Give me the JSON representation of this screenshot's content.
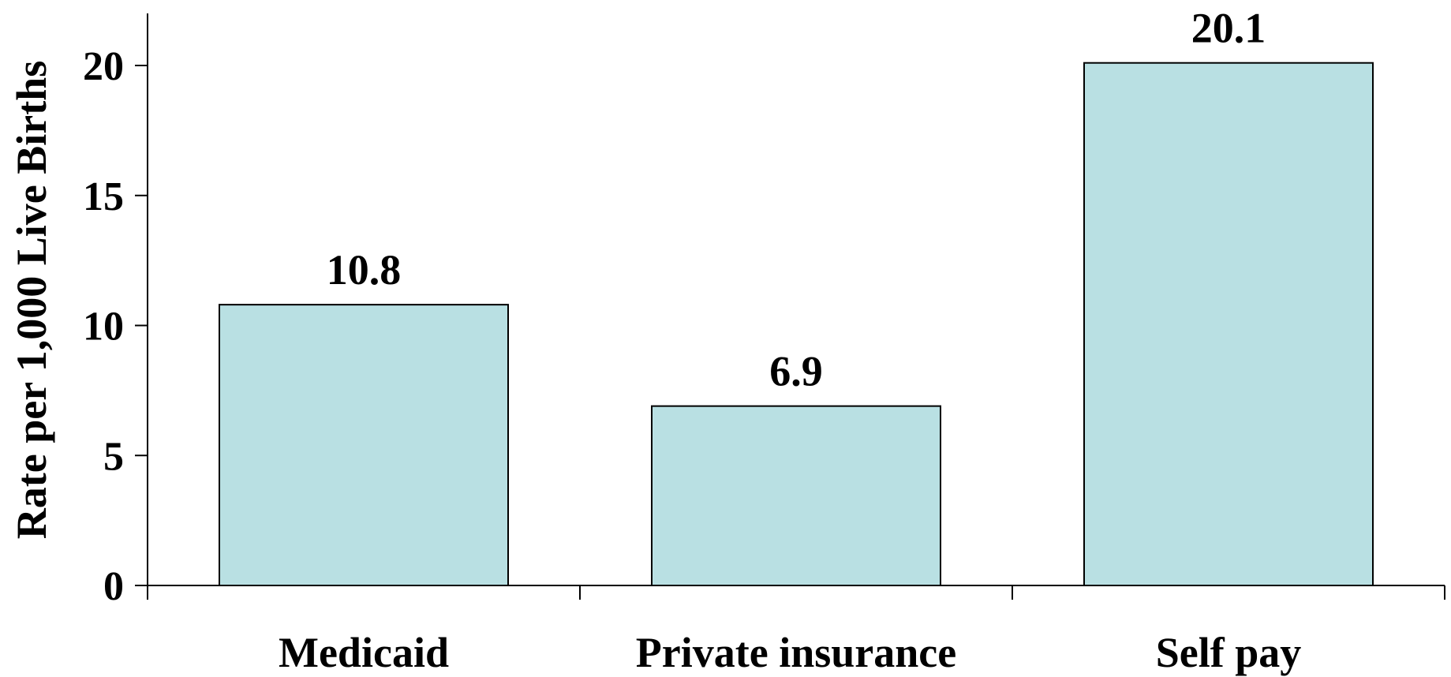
{
  "chart_data": {
    "type": "bar",
    "title": "",
    "xlabel": "",
    "ylabel": "Rate per 1,000 Live Births",
    "categories": [
      "Medicaid",
      "Private insurance",
      "Self pay"
    ],
    "values": [
      10.8,
      6.9,
      20.1
    ],
    "data_labels": [
      "10.8",
      "6.9",
      "20.1"
    ],
    "ylim": [
      0,
      20
    ],
    "yticks": [
      0,
      5,
      10,
      15,
      20
    ],
    "grid": false,
    "legend": "none",
    "bar_color": "#b9e0e3"
  }
}
